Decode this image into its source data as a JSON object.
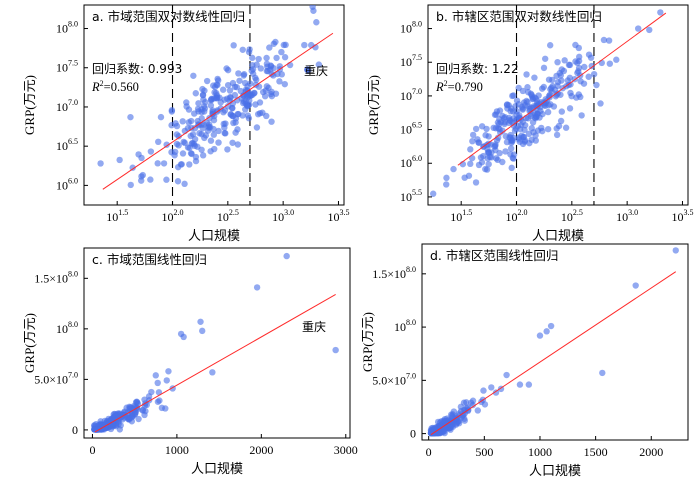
{
  "chart_data": [
    {
      "id": "a",
      "type": "scatter",
      "title": "a. 市域范围双对数线性回归",
      "xlabel": "人口规模",
      "ylabel": "GRP(万元)",
      "x_scale": "log",
      "y_scale": "log",
      "xlim": [
        1.2,
        3.55
      ],
      "ylim": [
        5.75,
        8.3
      ],
      "x_ticks": [
        {
          "v": 1.5,
          "b": "10",
          "e": "1.5"
        },
        {
          "v": 2.0,
          "b": "10",
          "e": "2.0"
        },
        {
          "v": 2.5,
          "b": "10",
          "e": "2.5"
        },
        {
          "v": 3.0,
          "b": "10",
          "e": "3.0"
        },
        {
          "v": 3.5,
          "b": "10",
          "e": "3.5"
        }
      ],
      "y_ticks": [
        {
          "v": 6.0,
          "b": "10",
          "e": "6.0"
        },
        {
          "v": 6.5,
          "b": "10",
          "e": "6.5"
        },
        {
          "v": 7.0,
          "b": "10",
          "e": "7.0"
        },
        {
          "v": 7.5,
          "b": "10",
          "e": "7.5"
        },
        {
          "v": 8.0,
          "b": "10",
          "e": "8.0"
        }
      ],
      "fit_line": {
        "x": [
          1.37,
          3.45
        ],
        "y": [
          5.95,
          7.94
        ]
      },
      "vlines": [
        2.0,
        2.7
      ],
      "coef_label": "回归系数: 0.993",
      "r2_label": "R²=0.560",
      "callout": "重庆",
      "highlight_point": {
        "x": 3.47,
        "y": 8.05
      },
      "n_points": 280,
      "seed": 11,
      "center": [
        2.48,
        7.0
      ],
      "spread": [
        0.34,
        0.47
      ],
      "extra_points": [
        {
          "x": 1.35,
          "y": 6.28
        },
        {
          "x": 1.62,
          "y": 6.87
        },
        {
          "x": 1.72,
          "y": 6.35
        },
        {
          "x": 3.3,
          "y": 8.08
        }
      ]
    },
    {
      "id": "b",
      "type": "scatter",
      "title": "b. 市辖区范围双对数线性回归",
      "xlabel": "人口规模",
      "ylabel": "GRP(万元)",
      "x_scale": "log",
      "y_scale": "log",
      "xlim": [
        1.2,
        3.55
      ],
      "ylim": [
        5.38,
        8.35
      ],
      "x_ticks": [
        {
          "v": 1.5,
          "b": "10",
          "e": "1.5"
        },
        {
          "v": 2.0,
          "b": "10",
          "e": "2.0"
        },
        {
          "v": 2.5,
          "b": "10",
          "e": "2.5"
        },
        {
          "v": 3.0,
          "b": "10",
          "e": "3.0"
        },
        {
          "v": 3.5,
          "b": "10",
          "e": "3.5"
        }
      ],
      "y_ticks": [
        {
          "v": 5.5,
          "b": "10",
          "e": "5.5"
        },
        {
          "v": 6.0,
          "b": "10",
          "e": "6.0"
        },
        {
          "v": 6.5,
          "b": "10",
          "e": "6.5"
        },
        {
          "v": 7.0,
          "b": "10",
          "e": "7.0"
        },
        {
          "v": 7.5,
          "b": "10",
          "e": "7.5"
        },
        {
          "v": 8.0,
          "b": "10",
          "e": "8.0"
        }
      ],
      "fit_line": {
        "x": [
          1.47,
          3.35
        ],
        "y": [
          5.97,
          8.23
        ]
      },
      "vlines": [
        2.0,
        2.7
      ],
      "coef_label": "回归系数: 1.22",
      "r2_label": "R²=0.790",
      "n_points": 280,
      "seed": 29,
      "center": [
        2.05,
        6.85
      ],
      "spread": [
        0.3,
        0.44
      ],
      "extra_points": [
        {
          "x": 3.3,
          "y": 8.24
        },
        {
          "x": 3.1,
          "y": 8.0
        },
        {
          "x": 3.2,
          "y": 7.98
        }
      ]
    },
    {
      "id": "c",
      "type": "scatter",
      "title": "c. 市域范围线性回归",
      "xlabel": "人口规模",
      "ylabel": "GRP(万元)",
      "xlim": [
        -100,
        3050
      ],
      "ylim": [
        -8000000,
        180000000
      ],
      "x_ticks": [
        {
          "v": 0,
          "t": "0"
        },
        {
          "v": 1000,
          "t": "1000"
        },
        {
          "v": 2000,
          "t": "2000"
        },
        {
          "v": 3000,
          "t": "3000"
        }
      ],
      "y_ticks": [
        {
          "v": 0,
          "t": "0"
        },
        {
          "v": 50000000,
          "m": "5.0×",
          "b": "10",
          "e": "7.0"
        },
        {
          "v": 100000000,
          "b": "10",
          "e": "8.0"
        },
        {
          "v": 150000000,
          "m": "1.5×",
          "b": "10",
          "e": "8.0"
        }
      ],
      "fit_line": {
        "x": [
          30,
          2880
        ],
        "y": [
          -2000000,
          134000000
        ]
      },
      "callout": "重庆",
      "n_points": 250,
      "seed": 47,
      "extra_points": [
        {
          "x": 2300,
          "y": 172000000
        },
        {
          "x": 1950,
          "y": 141000000
        },
        {
          "x": 2880,
          "y": 79000000
        },
        {
          "x": 1050,
          "y": 95000000
        },
        {
          "x": 1080,
          "y": 92000000
        },
        {
          "x": 1280,
          "y": 107000000
        },
        {
          "x": 1300,
          "y": 98000000
        },
        {
          "x": 1420,
          "y": 57000000
        },
        {
          "x": 900,
          "y": 58000000
        },
        {
          "x": 880,
          "y": 49000000
        },
        {
          "x": 750,
          "y": 54000000
        },
        {
          "x": 950,
          "y": 41000000
        }
      ]
    },
    {
      "id": "d",
      "type": "scatter",
      "title": "d. 市辖区范围线性回归",
      "xlabel": "人口规模",
      "ylabel": "GRP(万元)",
      "xlim": [
        -60,
        2330
      ],
      "ylim": [
        -6000000,
        178000000
      ],
      "x_ticks": [
        {
          "v": 0,
          "t": "0"
        },
        {
          "v": 500,
          "t": "500"
        },
        {
          "v": 1000,
          "t": "1000"
        },
        {
          "v": 1500,
          "t": "1500"
        },
        {
          "v": 2000,
          "t": "2000"
        }
      ],
      "y_ticks": [
        {
          "v": 0,
          "t": "0"
        },
        {
          "v": 50000000,
          "m": "5.0×",
          "b": "10",
          "e": "7.0"
        },
        {
          "v": 100000000,
          "b": "10",
          "e": "8.0"
        },
        {
          "v": 150000000,
          "m": "1.5×",
          "b": "10",
          "e": "8.0"
        }
      ],
      "fit_line": {
        "x": [
          20,
          2220
        ],
        "y": [
          -1000000,
          152000000
        ]
      },
      "n_points": 230,
      "seed": 71,
      "extra_points": [
        {
          "x": 2220,
          "y": 172000000
        },
        {
          "x": 1860,
          "y": 139000000
        },
        {
          "x": 1560,
          "y": 57000000
        },
        {
          "x": 1100,
          "y": 101000000
        },
        {
          "x": 1060,
          "y": 96000000
        },
        {
          "x": 1000,
          "y": 92000000
        },
        {
          "x": 700,
          "y": 55000000
        },
        {
          "x": 650,
          "y": 42000000
        },
        {
          "x": 900,
          "y": 46000000
        },
        {
          "x": 820,
          "y": 46000000
        }
      ]
    }
  ]
}
